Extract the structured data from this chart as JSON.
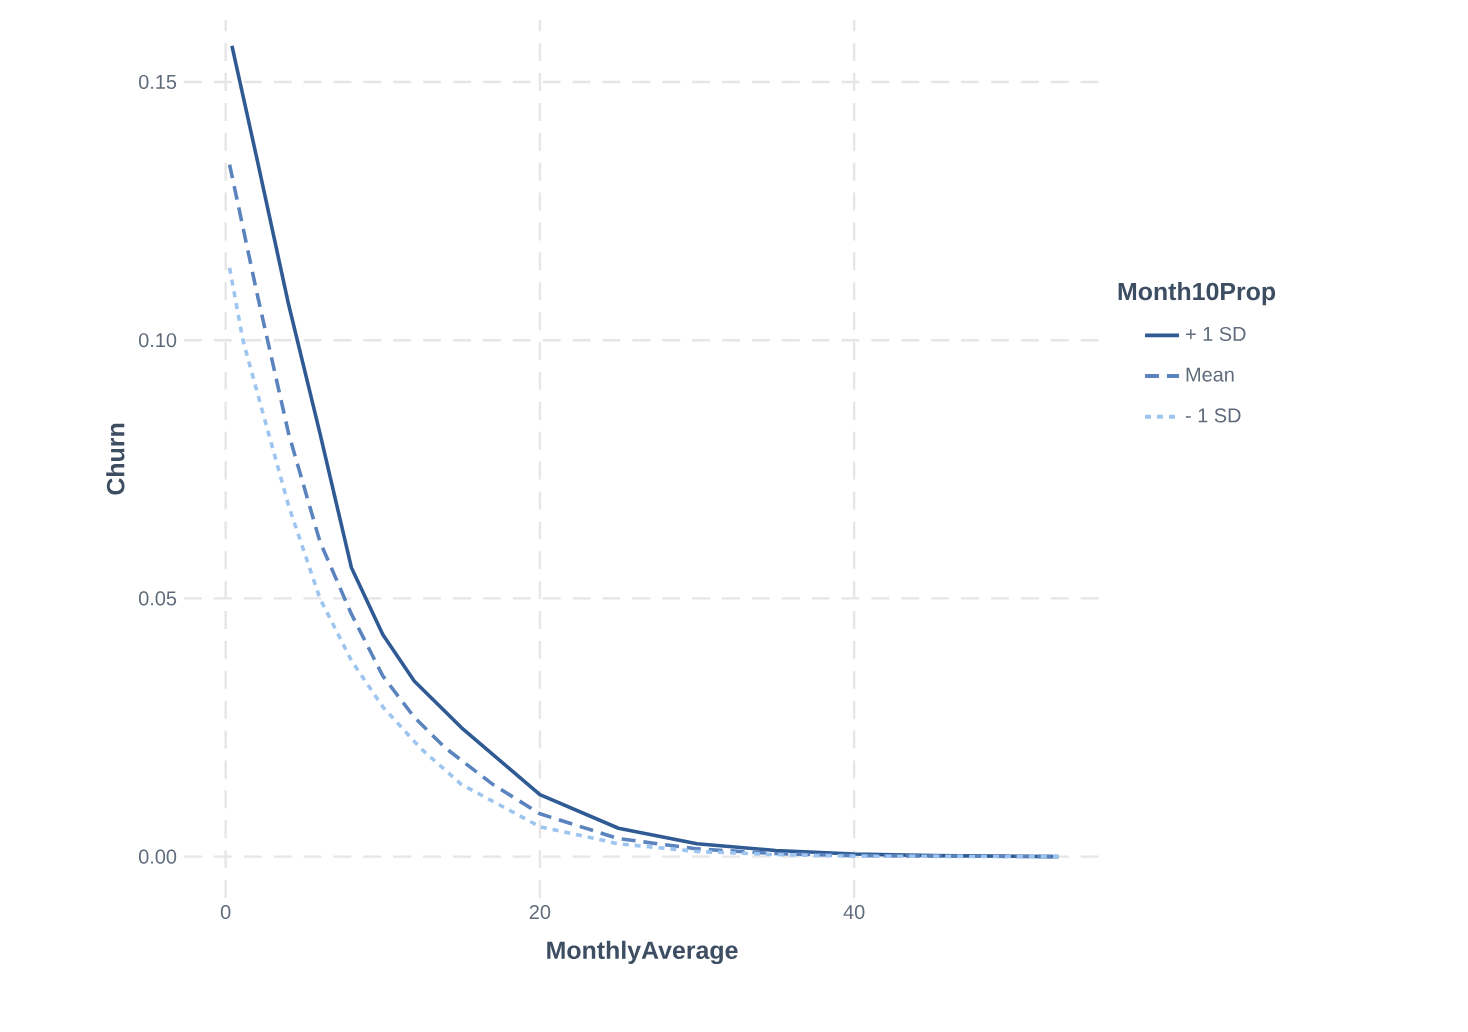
{
  "chart_data": {
    "type": "line",
    "xlabel": "MonthlyAverage",
    "ylabel": "Churn",
    "legend_title": "Month10Prop",
    "xlim": [
      -2.65,
      55.65
    ],
    "ylim": [
      -0.008,
      0.162
    ],
    "xticks": [
      0,
      20,
      40
    ],
    "yticks": [
      {
        "value": 0,
        "label": "0.00"
      },
      {
        "value": 0.05,
        "label": "0.05"
      },
      {
        "value": 0.1,
        "label": "0.10"
      },
      {
        "value": 0.15,
        "label": "0.15"
      }
    ],
    "grid": true,
    "legend": "right",
    "marker": "none",
    "series": [
      {
        "name": "+ 1 SD",
        "color": "#2f5a94",
        "line_style": "solid",
        "x": [
          0.4,
          2,
          4,
          6,
          8,
          10,
          12,
          15,
          20,
          25,
          30,
          35,
          40,
          45,
          53
        ],
        "values": [
          0.157,
          0.135,
          0.107,
          0.082,
          0.056,
          0.043,
          0.034,
          0.025,
          0.012,
          0.0055,
          0.0025,
          0.0012,
          0.0005,
          0.0002,
          0.0
        ]
      },
      {
        "name": "Mean",
        "color": "#5b84bf",
        "line_style": "dashed",
        "x": [
          0.25,
          2,
          4,
          6,
          8,
          10,
          12,
          14,
          17,
          20,
          25,
          30,
          35,
          40,
          53
        ],
        "values": [
          0.134,
          0.109,
          0.082,
          0.061,
          0.047,
          0.035,
          0.027,
          0.021,
          0.014,
          0.0083,
          0.0035,
          0.0015,
          0.0006,
          0.0002,
          0.0
        ]
      },
      {
        "name": "- 1 SD",
        "color": "#9ec5ef",
        "line_style": "dotted",
        "x": [
          0.25,
          1.1,
          2,
          4,
          6,
          8,
          10,
          12.4,
          15,
          20,
          25,
          30,
          35,
          40,
          53
        ],
        "values": [
          0.114,
          0.1,
          0.09,
          0.068,
          0.05,
          0.038,
          0.029,
          0.021,
          0.014,
          0.0058,
          0.0025,
          0.001,
          0.0004,
          0.0001,
          0.0
        ]
      }
    ]
  }
}
